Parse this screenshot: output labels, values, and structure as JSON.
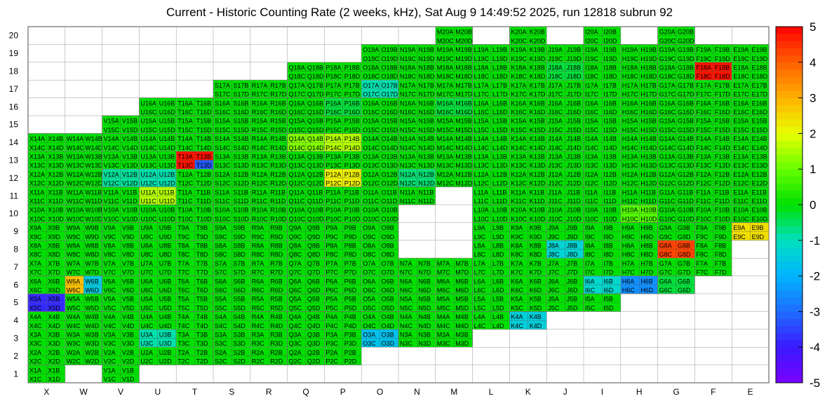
{
  "chart_data": {
    "type": "heatmap",
    "title": "Current - Historic Counting Rate (2 weeks, kHz), Sat Aug  9 14:49:52 2025, run 12818 subrun 92",
    "x_categories": [
      "X",
      "W",
      "V",
      "U",
      "T",
      "S",
      "R",
      "Q",
      "P",
      "O",
      "N",
      "M",
      "L",
      "K",
      "J",
      "I",
      "H",
      "G",
      "F",
      "E"
    ],
    "y_categories": [
      "1",
      "2",
      "3",
      "4",
      "5",
      "6",
      "7",
      "8",
      "9",
      "10",
      "11",
      "12",
      "13",
      "14",
      "15",
      "16",
      "17",
      "18",
      "19",
      "20"
    ],
    "colorbar": {
      "min": -5,
      "max": 5,
      "ticks": [
        "-5",
        "-4",
        "-3",
        "-2",
        "-1",
        "0",
        "1",
        "2",
        "3",
        "4",
        "5"
      ]
    },
    "default_value": 0,
    "rows": [
      {
        "y": "1",
        "from": "X",
        "to": "X"
      },
      {
        "y": "1",
        "from": "V",
        "to": "V"
      },
      {
        "y": "2",
        "from": "X",
        "to": "P"
      },
      {
        "y": "3",
        "from": "X",
        "to": "M"
      },
      {
        "y": "4",
        "from": "X",
        "to": "K"
      },
      {
        "y": "5",
        "from": "X",
        "to": "I"
      },
      {
        "y": "6",
        "from": "X",
        "to": "G"
      },
      {
        "y": "7",
        "from": "X",
        "to": "F"
      },
      {
        "y": "8",
        "from": "X",
        "to": "O"
      },
      {
        "y": "8",
        "from": "L",
        "to": "F"
      },
      {
        "y": "9",
        "from": "X",
        "to": "O"
      },
      {
        "y": "9",
        "from": "L",
        "to": "E"
      },
      {
        "y": "10",
        "from": "X",
        "to": "O"
      },
      {
        "y": "10",
        "from": "L",
        "to": "E"
      },
      {
        "y": "11",
        "from": "X",
        "to": "N"
      },
      {
        "y": "11",
        "from": "L",
        "to": "E"
      },
      {
        "y": "12",
        "from": "X",
        "to": "E"
      },
      {
        "y": "13",
        "from": "X",
        "to": "E"
      },
      {
        "y": "14",
        "from": "X",
        "to": "E"
      },
      {
        "y": "15",
        "from": "V",
        "to": "E"
      },
      {
        "y": "16",
        "from": "U",
        "to": "E"
      },
      {
        "y": "17",
        "from": "S",
        "to": "E"
      },
      {
        "y": "18",
        "from": "Q",
        "to": "E"
      },
      {
        "y": "19",
        "from": "O",
        "to": "E"
      },
      {
        "y": "20",
        "from": "M",
        "to": "M"
      },
      {
        "y": "20",
        "from": "K",
        "to": "K"
      },
      {
        "y": "20",
        "from": "I",
        "to": "I"
      },
      {
        "y": "20",
        "from": "G",
        "to": "G"
      }
    ],
    "special_values": [
      {
        "cell": "X5",
        "value": -3.8
      },
      {
        "cell": "W6",
        "value": 2.8
      },
      {
        "cell": "W6b",
        "value": -1.5
      },
      {
        "cell": "O3",
        "value": -1.7
      },
      {
        "cell": "K4",
        "value": -1.4
      },
      {
        "cell": "I6",
        "value": -1.2
      },
      {
        "cell": "H6",
        "value": -2.5
      },
      {
        "cell": "J8",
        "value": -1.3
      },
      {
        "cell": "G8",
        "value": 4.3
      },
      {
        "cell": "E9",
        "value": 2.4
      },
      {
        "cell": "P12",
        "value": 2.2
      },
      {
        "cell": "U11",
        "value": 1.6
      },
      {
        "cell": "H10",
        "value": 0.8
      },
      {
        "cell": "Q14",
        "value": 1.2
      },
      {
        "cell": "P14",
        "value": 1.6
      },
      {
        "cell": "T13",
        "value": 4.8
      },
      {
        "cell": "T13b",
        "value": -3.2
      },
      {
        "cell": "F18",
        "value": 4.8
      },
      {
        "cell": "U12",
        "value": -0.9
      },
      {
        "cell": "V12",
        "value": -0.8
      },
      {
        "cell": "N12",
        "value": -0.6
      },
      {
        "cell": "O17",
        "value": -0.9
      },
      {
        "cell": "P16",
        "value": -0.3
      },
      {
        "cell": "M16",
        "value": -0.3
      },
      {
        "cell": "U3",
        "value": -0.9
      },
      {
        "cell": "G6",
        "value": -0.3
      },
      {
        "cell": "J18",
        "value": -0.3
      }
    ],
    "cell_labels": [
      {
        "x": "X",
        "y": "1",
        "top": "X1A",
        "bot": "X1C",
        "top2": "X1B",
        "bot2": "X1D"
      },
      {
        "x": "V",
        "y": "1",
        "top": "V1A",
        "bot": "V1C",
        "top2": "V1B",
        "bot2": "V1D"
      }
    ]
  }
}
